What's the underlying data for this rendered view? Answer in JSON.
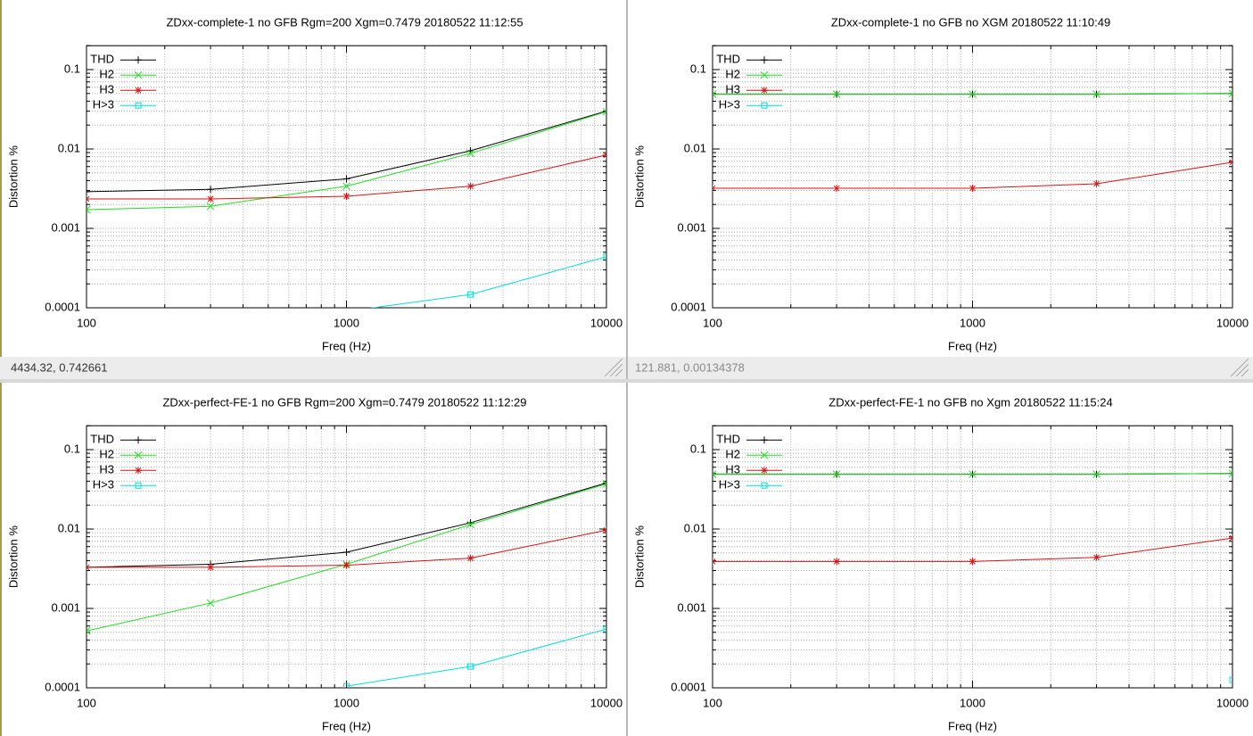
{
  "chart_data": [
    {
      "type": "line",
      "title": "ZDxx-complete-1 no GFB Rgm=200 Xgm=0.7479 20180522 11:12:55",
      "xlabel": "Freq (Hz)",
      "ylabel": "Distortion %",
      "x": [
        100,
        300,
        1000,
        3000,
        10000
      ],
      "series": [
        {
          "name": "THD",
          "color": "#000000",
          "marker": "plus",
          "values": [
            0.0029,
            0.0031,
            0.0042,
            0.0095,
            0.03
          ]
        },
        {
          "name": "H2",
          "color": "#22dd22",
          "marker": "cross",
          "values": [
            0.00172,
            0.0019,
            0.0034,
            0.0088,
            0.0295
          ]
        },
        {
          "name": "H3",
          "color": "#dd1111",
          "marker": "star",
          "values": [
            0.00235,
            0.00235,
            0.00254,
            0.0034,
            0.0084
          ]
        },
        {
          "name": "H>3",
          "color": "#00dddd",
          "marker": "square",
          "values": [
            null,
            null,
            9e-05,
            0.000147,
            0.00044
          ]
        }
      ],
      "xlim": [
        100,
        10000
      ],
      "ylim": [
        0.0001,
        0.2
      ],
      "xticks": [
        100,
        1000,
        10000
      ],
      "yticks": [
        0.0001,
        0.001,
        0.01,
        0.1
      ],
      "log_x": true,
      "log_y": true,
      "grid": true,
      "legend": "top-left"
    },
    {
      "type": "line",
      "title": "ZDxx-complete-1 no GFB no XGM 20180522 11:10:49",
      "xlabel": "Freq (Hz)",
      "ylabel": "Distortion %",
      "x": [
        100,
        300,
        1000,
        3000,
        10000
      ],
      "series": [
        {
          "name": "THD",
          "color": "#000000",
          "marker": "plus",
          "values": [
            0.049,
            0.049,
            0.049,
            0.049,
            0.05
          ]
        },
        {
          "name": "H2",
          "color": "#22dd22",
          "marker": "cross",
          "values": [
            0.049,
            0.049,
            0.049,
            0.049,
            0.05
          ]
        },
        {
          "name": "H3",
          "color": "#dd1111",
          "marker": "star",
          "values": [
            0.0032,
            0.0032,
            0.0032,
            0.00365,
            0.0068
          ]
        },
        {
          "name": "H>3",
          "color": "#00dddd",
          "marker": "square",
          "values": [
            null,
            null,
            null,
            null,
            null
          ]
        }
      ],
      "xlim": [
        100,
        10000
      ],
      "ylim": [
        0.0001,
        0.2
      ],
      "xticks": [
        100,
        1000,
        10000
      ],
      "yticks": [
        0.0001,
        0.001,
        0.01,
        0.1
      ],
      "log_x": true,
      "log_y": true,
      "grid": true,
      "legend": "top-left"
    },
    {
      "type": "line",
      "title": "ZDxx-perfect-FE-1 no GFB Rgm=200 Xgm=0.7479 20180522 11:12:29",
      "xlabel": "Freq (Hz)",
      "ylabel": "Distortion %",
      "x": [
        100,
        300,
        1000,
        3000,
        10000
      ],
      "series": [
        {
          "name": "THD",
          "color": "#000000",
          "marker": "plus",
          "values": [
            0.0033,
            0.0036,
            0.0051,
            0.012,
            0.038
          ]
        },
        {
          "name": "H2",
          "color": "#22dd22",
          "marker": "cross",
          "values": [
            0.00052,
            0.00117,
            0.0036,
            0.0114,
            0.037
          ]
        },
        {
          "name": "H3",
          "color": "#dd1111",
          "marker": "star",
          "values": [
            0.0033,
            0.0033,
            0.0035,
            0.0043,
            0.0097
          ]
        },
        {
          "name": "H>3",
          "color": "#00dddd",
          "marker": "square",
          "values": [
            null,
            null,
            0.000105,
            0.000186,
            0.00055
          ]
        }
      ],
      "xlim": [
        100,
        10000
      ],
      "ylim": [
        0.0001,
        0.2
      ],
      "xticks": [
        100,
        1000,
        10000
      ],
      "yticks": [
        0.0001,
        0.001,
        0.01,
        0.1
      ],
      "log_x": true,
      "log_y": true,
      "grid": true,
      "legend": "top-left"
    },
    {
      "type": "line",
      "title": "ZDxx-perfect-FE-1 no GFB no Xgm 20180522 11:15:24",
      "xlabel": "Freq (Hz)",
      "ylabel": "Distortion %",
      "x": [
        100,
        300,
        1000,
        3000,
        10000
      ],
      "series": [
        {
          "name": "THD",
          "color": "#000000",
          "marker": "plus",
          "values": [
            0.049,
            0.049,
            0.049,
            0.049,
            0.05
          ]
        },
        {
          "name": "H2",
          "color": "#22dd22",
          "marker": "cross",
          "values": [
            0.049,
            0.049,
            0.049,
            0.049,
            0.05
          ]
        },
        {
          "name": "H3",
          "color": "#dd1111",
          "marker": "star",
          "values": [
            0.0039,
            0.0039,
            0.0039,
            0.0044,
            0.0077
          ]
        },
        {
          "name": "H>3",
          "color": "#00dddd",
          "marker": "square",
          "values": [
            null,
            null,
            null,
            null,
            0.000126
          ]
        }
      ],
      "xlim": [
        100,
        10000
      ],
      "ylim": [
        0.0001,
        0.2
      ],
      "xticks": [
        100,
        1000,
        10000
      ],
      "yticks": [
        0.0001,
        0.001,
        0.01,
        0.1
      ],
      "log_x": true,
      "log_y": true,
      "grid": true,
      "legend": "top-left"
    }
  ],
  "status_bars": [
    "4434.32,  0.742661",
    "121.881,  0.00134378"
  ]
}
